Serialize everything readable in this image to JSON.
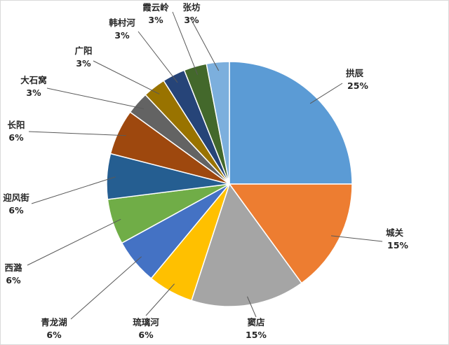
{
  "chart_data": {
    "type": "pie",
    "title": "",
    "start_angle_deg": 0,
    "direction": "clockwise",
    "slices": [
      {
        "label": "拱辰",
        "pct_label": "25%",
        "value": 25,
        "color": "#5b9bd5"
      },
      {
        "label": "城关",
        "pct_label": "15%",
        "value": 15,
        "color": "#ed7d31"
      },
      {
        "label": "窦店",
        "pct_label": "15%",
        "value": 15,
        "color": "#a5a5a5"
      },
      {
        "label": "琉璃河",
        "pct_label": "6%",
        "value": 6,
        "color": "#ffc000"
      },
      {
        "label": "青龙湖",
        "pct_label": "6%",
        "value": 6,
        "color": "#4472c4"
      },
      {
        "label": "西潞",
        "pct_label": "6%",
        "value": 6,
        "color": "#70ad47"
      },
      {
        "label": "迎风街",
        "pct_label": "6%",
        "value": 6,
        "color": "#255e91"
      },
      {
        "label": "长阳",
        "pct_label": "6%",
        "value": 6,
        "color": "#9e480e"
      },
      {
        "label": "大石窝",
        "pct_label": "3%",
        "value": 3,
        "color": "#636363"
      },
      {
        "label": "广阳",
        "pct_label": "3%",
        "value": 3,
        "color": "#997300"
      },
      {
        "label": "韩村河",
        "pct_label": "3%",
        "value": 3,
        "color": "#264478"
      },
      {
        "label": "霞云岭",
        "pct_label": "3%",
        "value": 3,
        "color": "#43682b"
      },
      {
        "label": "张坊",
        "pct_label": "3%",
        "value": 3,
        "color": "#7cafdd"
      }
    ]
  }
}
